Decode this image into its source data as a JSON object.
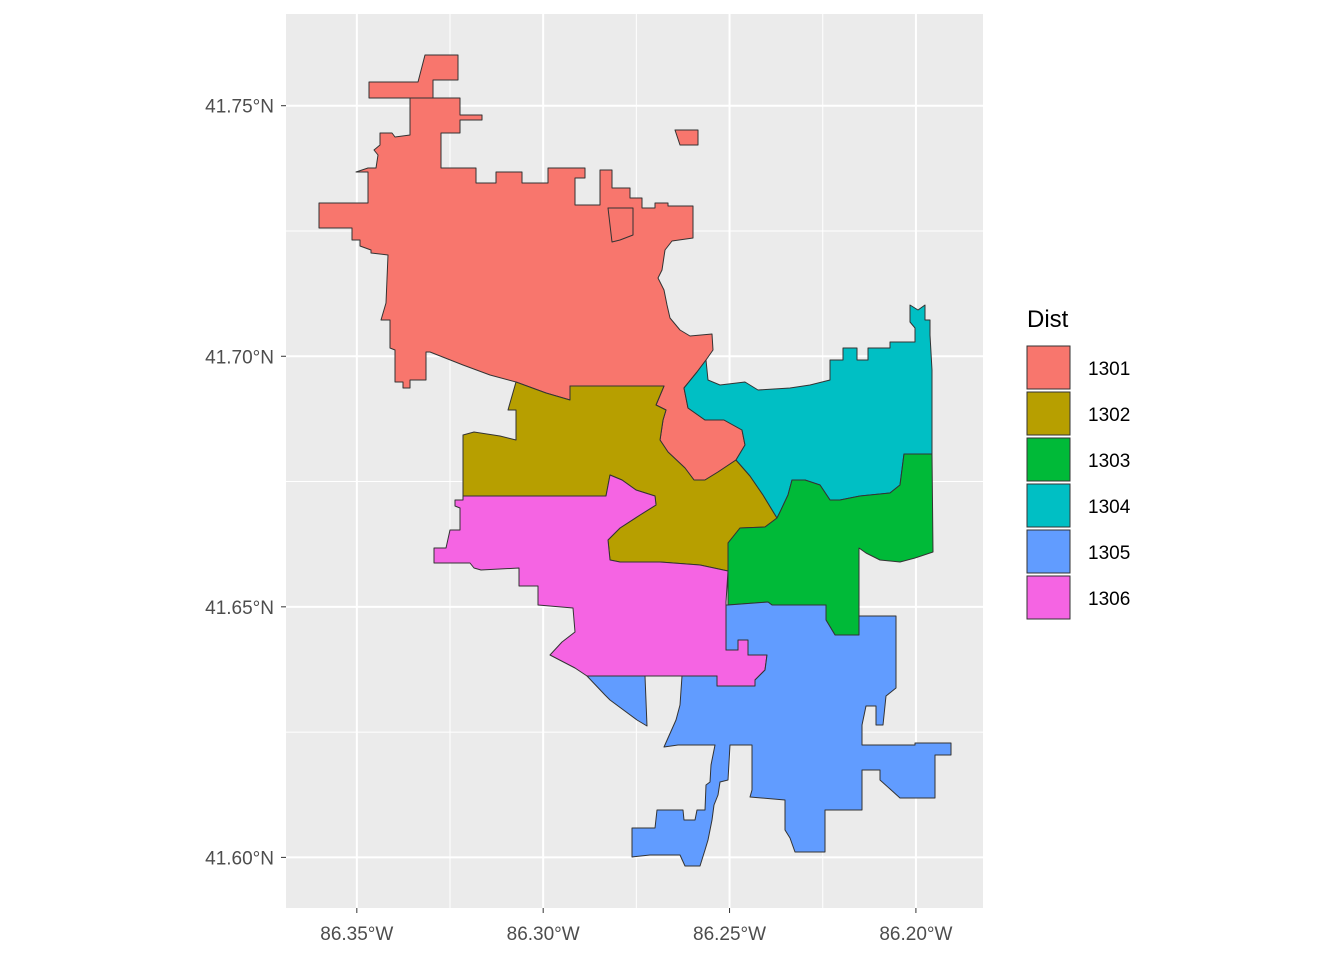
{
  "chart_data": {
    "type": "map",
    "panel_background": "#ebebeb",
    "grid": true,
    "grid_color": "#ffffff",
    "x_axis": {
      "ticks": [
        "86.35°W",
        "86.30°W",
        "86.25°W",
        "86.20°W"
      ],
      "tick_values": [
        -86.35,
        -86.3,
        -86.25,
        -86.2
      ],
      "range": [
        -86.369,
        -86.182
      ]
    },
    "y_axis": {
      "ticks": [
        "41.75°N",
        "41.70°N",
        "41.65°N",
        "41.60°N"
      ],
      "tick_values": [
        41.75,
        41.7,
        41.65,
        41.6
      ],
      "range": [
        41.5899,
        41.7683
      ]
    },
    "legend": {
      "title": "Dist",
      "placement": "right",
      "entries": [
        {
          "label": "1301",
          "color": "#F8766D"
        },
        {
          "label": "1302",
          "color": "#B79F00"
        },
        {
          "label": "1303",
          "color": "#00BA38"
        },
        {
          "label": "1304",
          "color": "#00BFC4"
        },
        {
          "label": "1305",
          "color": "#619CFF"
        },
        {
          "label": "1306",
          "color": "#F564E3"
        }
      ]
    }
  }
}
